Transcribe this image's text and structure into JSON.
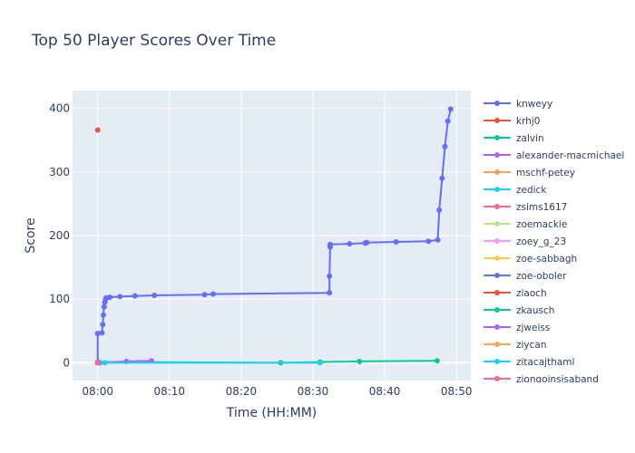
{
  "chart_data": {
    "type": "line",
    "title": "Top 50 Player Scores Over Time",
    "xlabel": "Time (HH:MM)",
    "ylabel": "Score",
    "x_unit": "minutes after 08:00",
    "xlim": [
      -3.5,
      52
    ],
    "ylim": [
      -28,
      428
    ],
    "x_ticks": [
      {
        "label": "08:00",
        "value": 0
      },
      {
        "label": "08:10",
        "value": 10
      },
      {
        "label": "08:20",
        "value": 20
      },
      {
        "label": "08:30",
        "value": 30
      },
      {
        "label": "08:40",
        "value": 40
      },
      {
        "label": "08:50",
        "value": 50
      }
    ],
    "y_ticks": [
      0,
      100,
      200,
      300,
      400
    ],
    "grid": true,
    "legend_position": "right",
    "series": [
      {
        "name": "knweyy",
        "color": "#636efa",
        "mode": "lines+markers",
        "x": [
          0.0,
          0.0,
          0.6,
          0.7,
          0.8,
          0.9,
          1.0,
          1.1,
          1.2,
          1.7,
          3.1,
          5.2,
          7.9,
          14.9,
          16.1,
          32.3,
          32.3,
          32.4,
          32.4,
          35.1,
          37.3,
          37.5,
          41.6,
          46.1,
          47.4,
          47.6,
          48.0,
          48.4,
          48.8,
          49.2
        ],
        "y": [
          0,
          46,
          47,
          60,
          75,
          88,
          95,
          100,
          102,
          103,
          104,
          105,
          106,
          107,
          108,
          110,
          136,
          182,
          186,
          187,
          188,
          189,
          190,
          191,
          193,
          240,
          290,
          340,
          380,
          399
        ]
      },
      {
        "name": "krhj0",
        "color": "#EF553B",
        "mode": "markers",
        "x": [
          0.0
        ],
        "y": [
          366
        ]
      },
      {
        "name": "zalvin",
        "color": "#00cc96",
        "mode": "lines+markers",
        "x": [
          0.0,
          0.1,
          25.5,
          31.0,
          36.5,
          47.3
        ],
        "y": [
          1,
          1,
          0,
          1,
          2,
          3
        ]
      },
      {
        "name": "alexander-macmichael",
        "color": "#ab63fa",
        "mode": "lines+markers",
        "x": [
          0.0,
          0.3,
          4.0,
          7.5
        ],
        "y": [
          0,
          0,
          2,
          3
        ]
      },
      {
        "name": "mschf-petey",
        "color": "#FFA15A",
        "mode": "lines+markers",
        "x": [
          0.0
        ],
        "y": [
          0
        ]
      },
      {
        "name": "zedick",
        "color": "#19d3f3",
        "mode": "lines+markers",
        "x": [
          0.0,
          1.0,
          31.0
        ],
        "y": [
          0,
          0,
          0
        ]
      },
      {
        "name": "zsims1617",
        "color": "#FF6692",
        "mode": "lines+markers",
        "x": [
          0.0
        ],
        "y": [
          0
        ]
      },
      {
        "name": "zoemackie",
        "color": "#B6E880",
        "mode": "lines+markers",
        "x": [
          0.0
        ],
        "y": [
          0
        ]
      },
      {
        "name": "zoey_g_23",
        "color": "#FF97FF",
        "mode": "lines+markers",
        "x": [
          0.0
        ],
        "y": [
          0
        ]
      },
      {
        "name": "zoe-sabbagh",
        "color": "#FECB52",
        "mode": "lines+markers",
        "x": [
          0.0
        ],
        "y": [
          0
        ]
      },
      {
        "name": "zoe-oboler",
        "color": "#636efa",
        "mode": "lines+markers",
        "x": [
          0.0
        ],
        "y": [
          0
        ]
      },
      {
        "name": "zlaoch",
        "color": "#EF553B",
        "mode": "lines+markers",
        "x": [
          0.0
        ],
        "y": [
          0
        ]
      },
      {
        "name": "zkausch",
        "color": "#00cc96",
        "mode": "lines+markers",
        "x": [
          0.0
        ],
        "y": [
          0
        ]
      },
      {
        "name": "zjweiss",
        "color": "#ab63fa",
        "mode": "lines+markers",
        "x": [
          0.0
        ],
        "y": [
          0
        ]
      },
      {
        "name": "ziycan",
        "color": "#FFA15A",
        "mode": "lines+markers",
        "x": [
          0.0
        ],
        "y": [
          0
        ]
      },
      {
        "name": "zitacajthaml",
        "color": "#19d3f3",
        "mode": "lines+markers",
        "x": [
          0.0
        ],
        "y": [
          0
        ]
      },
      {
        "name": "ziongoinsisaband",
        "color": "#FF6692",
        "mode": "lines+markers",
        "x": [
          0.0
        ],
        "y": [
          0
        ]
      }
    ]
  }
}
